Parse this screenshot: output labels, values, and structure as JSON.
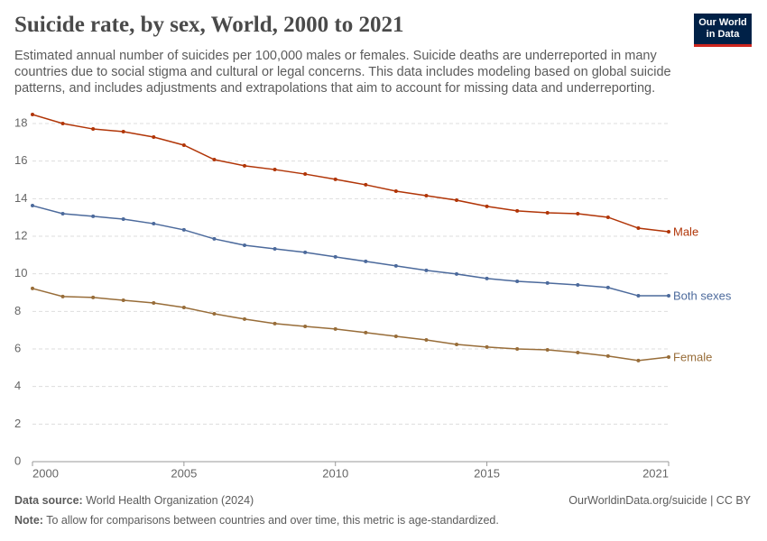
{
  "title": "Suicide rate, by sex, World, 2000 to 2021",
  "subtitle": "Estimated annual number of suicides per 100,000 males or females. Suicide deaths are underreported in many countries due to social stigma and cultural or legal concerns. This data includes modeling based on global suicide patterns, and includes adjustments and extrapolations that aim to account for missing data and underreporting.",
  "logo": [
    "Our World",
    "in Data"
  ],
  "footer": {
    "source_label": "Data source:",
    "source": "World Health Organization (2024)",
    "url": "OurWorldinData.org/suicide | CC BY",
    "note_label": "Note:",
    "note": "To allow for comparisons between countries and over time, this metric is age-standardized."
  },
  "chart_data": {
    "type": "line",
    "x": [
      2000,
      2001,
      2002,
      2003,
      2004,
      2005,
      2006,
      2007,
      2008,
      2009,
      2010,
      2011,
      2012,
      2013,
      2014,
      2015,
      2016,
      2017,
      2018,
      2019,
      2020,
      2021
    ],
    "xlim": [
      2000,
      2021
    ],
    "xticks": [
      2000,
      2005,
      2010,
      2015,
      2021
    ],
    "ylim": [
      0,
      18.5
    ],
    "yticks": [
      0,
      2,
      4,
      6,
      8,
      10,
      12,
      14,
      16,
      18
    ],
    "grid": true,
    "series": [
      {
        "name": "Male",
        "color": "#b13507",
        "values": [
          18.48,
          18.0,
          17.71,
          17.57,
          17.28,
          16.85,
          16.08,
          15.75,
          15.55,
          15.31,
          15.03,
          14.74,
          14.4,
          14.16,
          13.92,
          13.59,
          13.35,
          13.25,
          13.2,
          13.01,
          12.43,
          12.24
        ]
      },
      {
        "name": "Both sexes",
        "color": "#4c6a9c",
        "values": [
          13.63,
          13.2,
          13.06,
          12.91,
          12.67,
          12.34,
          11.86,
          11.52,
          11.33,
          11.14,
          10.9,
          10.66,
          10.42,
          10.18,
          9.99,
          9.75,
          9.6,
          9.51,
          9.41,
          9.27,
          8.83,
          8.83
        ]
      },
      {
        "name": "Female",
        "color": "#986d39",
        "values": [
          9.22,
          8.79,
          8.74,
          8.59,
          8.45,
          8.21,
          7.87,
          7.59,
          7.35,
          7.2,
          7.06,
          6.87,
          6.67,
          6.48,
          6.24,
          6.1,
          6.0,
          5.95,
          5.81,
          5.62,
          5.38,
          5.57
        ]
      }
    ]
  }
}
